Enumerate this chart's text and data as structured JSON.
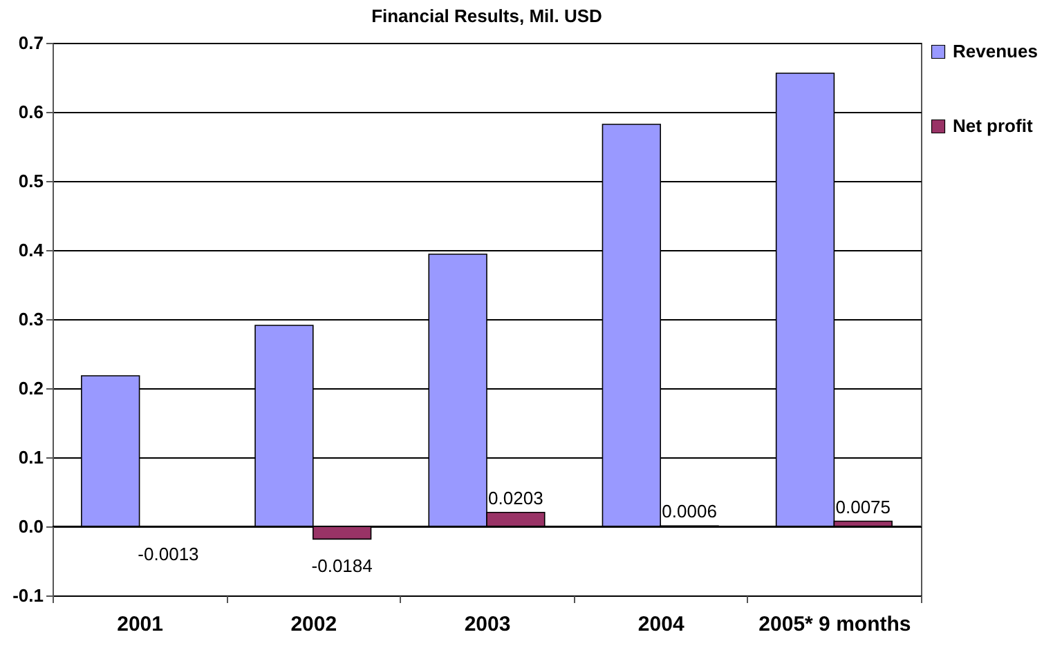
{
  "chart_data": {
    "type": "bar",
    "title": "Financial Results, Mil. USD",
    "categories": [
      "2001",
      "2002",
      "2003",
      "2004",
      "2005* 9 months"
    ],
    "series": [
      {
        "name": "Revenues",
        "color": "#9999ff",
        "values": [
          0.218,
          0.291,
          0.394,
          0.582,
          0.656
        ]
      },
      {
        "name": "Net profit",
        "color": "#993366",
        "values": [
          -0.0013,
          -0.0184,
          0.0203,
          0.0006,
          0.0075
        ],
        "value_labels": [
          "-0.0013",
          "-0.0184",
          "0.0203",
          "0.0006",
          "0.0075"
        ]
      }
    ],
    "ylim": [
      -0.1,
      0.7
    ],
    "yticks": [
      {
        "value": -0.1,
        "label": "-0.1"
      },
      {
        "value": 0,
        "label": "0.0"
      },
      0.1,
      0.2,
      0.3,
      0.4,
      0.5,
      0.6,
      0.7
    ],
    "grid": "y",
    "legend": "right"
  }
}
